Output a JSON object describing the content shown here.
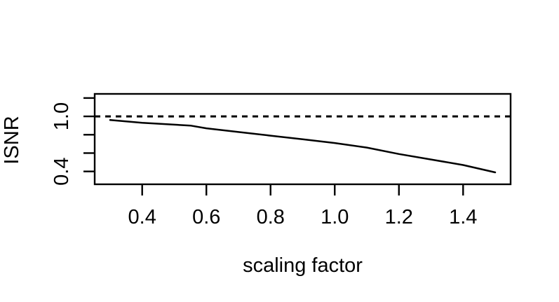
{
  "figure": {
    "background": "#ffffff",
    "foreground": "#000000"
  },
  "chart_data": {
    "type": "line",
    "title": "",
    "xlabel": "scaling factor",
    "ylabel": "ISNR",
    "xlim": [
      0.252,
      1.548
    ],
    "ylim": [
      0.26,
      1.245
    ],
    "x_ticks": [
      0.4,
      0.6,
      0.8,
      1.0,
      1.2,
      1.4
    ],
    "x_tick_labels": [
      "0.4",
      "0.6",
      "0.8",
      "1.0",
      "1.2",
      "1.4"
    ],
    "y_ticks": [
      1.2,
      1.0,
      0.8,
      0.6,
      0.4
    ],
    "y_tick_labels": [
      "",
      "1.0",
      "",
      "",
      "0.4"
    ],
    "grid": false,
    "legend": null,
    "box": true,
    "series": [
      {
        "name": "ISNR curve",
        "style": "solid",
        "color": "#000000",
        "x": [
          0.3,
          0.4,
          0.5,
          0.55,
          0.6,
          0.7,
          0.8,
          0.9,
          1.0,
          1.1,
          1.2,
          1.3,
          1.4,
          1.5
        ],
        "y": [
          0.96,
          0.93,
          0.91,
          0.9,
          0.87,
          0.83,
          0.79,
          0.75,
          0.71,
          0.66,
          0.59,
          0.53,
          0.47,
          0.39
        ]
      }
    ],
    "reference_line": {
      "y": 1.0,
      "style": "dashed",
      "color": "#000000"
    }
  }
}
